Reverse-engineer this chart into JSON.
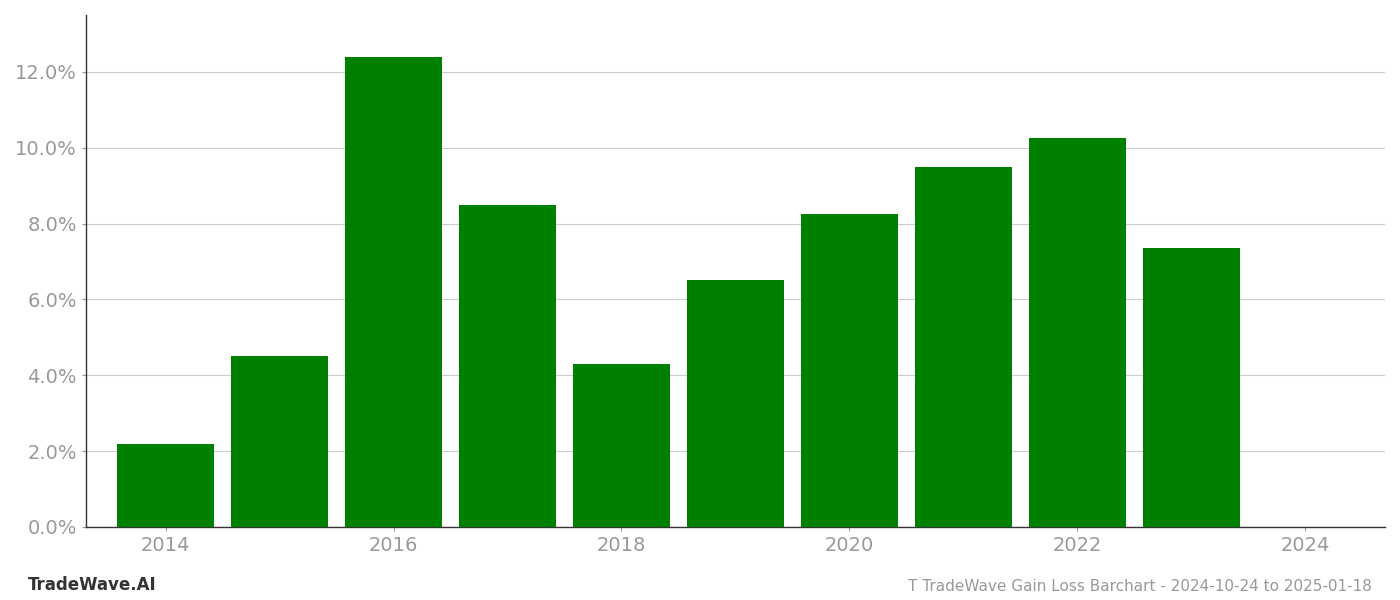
{
  "years": [
    2014,
    2015,
    2016,
    2017,
    2018,
    2019,
    2020,
    2021,
    2022,
    2023
  ],
  "values": [
    0.022,
    0.045,
    0.124,
    0.085,
    0.043,
    0.065,
    0.0825,
    0.095,
    0.1025,
    0.0735
  ],
  "bar_color": "#008000",
  "background_color": "#ffffff",
  "title": "T TradeWave Gain Loss Barchart - 2024-10-24 to 2025-01-18",
  "watermark": "TradeWave.AI",
  "ylim": [
    0,
    0.135
  ],
  "yticks": [
    0.0,
    0.02,
    0.04,
    0.06,
    0.08,
    0.1,
    0.12
  ],
  "xticks": [
    2014,
    2016,
    2018,
    2020,
    2022,
    2024
  ],
  "grid_color": "#cccccc",
  "tick_color": "#999999",
  "label_fontsize": 14,
  "title_fontsize": 11,
  "watermark_fontsize": 12,
  "bar_width": 0.85,
  "xlim": [
    2013.3,
    2024.7
  ]
}
